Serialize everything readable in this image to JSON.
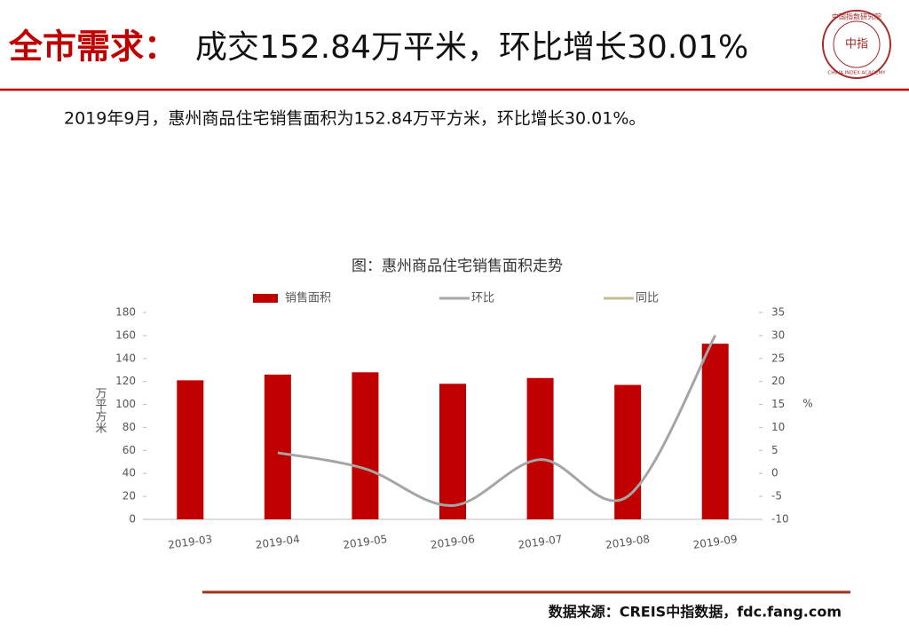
{
  "header": {
    "label": "全市需求：",
    "title": "成交152.84万平米，环比增长30.01%"
  },
  "logo": {
    "name": "中国指数研究院",
    "center": "中指",
    "english": "CHINA INDEX ACADEMY"
  },
  "description": "2019年9月，惠州商品住宅销售面积为152.84万平方米，环比增长30.01%。",
  "chart_data": {
    "type": "bar",
    "title": "图：惠州商品住宅销售面积走势",
    "categories": [
      "2019-03",
      "2019-04",
      "2019-05",
      "2019-06",
      "2019-07",
      "2019-08",
      "2019-09"
    ],
    "series": [
      {
        "name": "销售面积",
        "type": "bar",
        "color": "#c00000",
        "values": [
          121,
          126,
          128,
          118,
          123,
          117,
          152.84
        ]
      },
      {
        "name": "环比",
        "type": "line",
        "axis": "y2",
        "color": "#a5a5a5",
        "values": [
          null,
          4.5,
          1,
          -7,
          3,
          -5,
          30.01
        ]
      },
      {
        "name": "同比",
        "type": "line",
        "axis": "y2",
        "color": "#c4bd97",
        "values": [
          null,
          null,
          null,
          null,
          null,
          null,
          null
        ]
      }
    ],
    "ylabel": "万平方米",
    "y2label": "%",
    "ylim": [
      0,
      180
    ],
    "yticks": [
      0,
      20,
      40,
      60,
      80,
      100,
      120,
      140,
      160,
      180
    ],
    "y2lim": [
      -10,
      35
    ],
    "y2ticks": [
      -10,
      -5,
      0,
      5,
      10,
      15,
      20,
      25,
      30,
      35
    ],
    "legend": "top"
  },
  "source": "数据来源：CREIS中指数据，fdc.fang.com"
}
